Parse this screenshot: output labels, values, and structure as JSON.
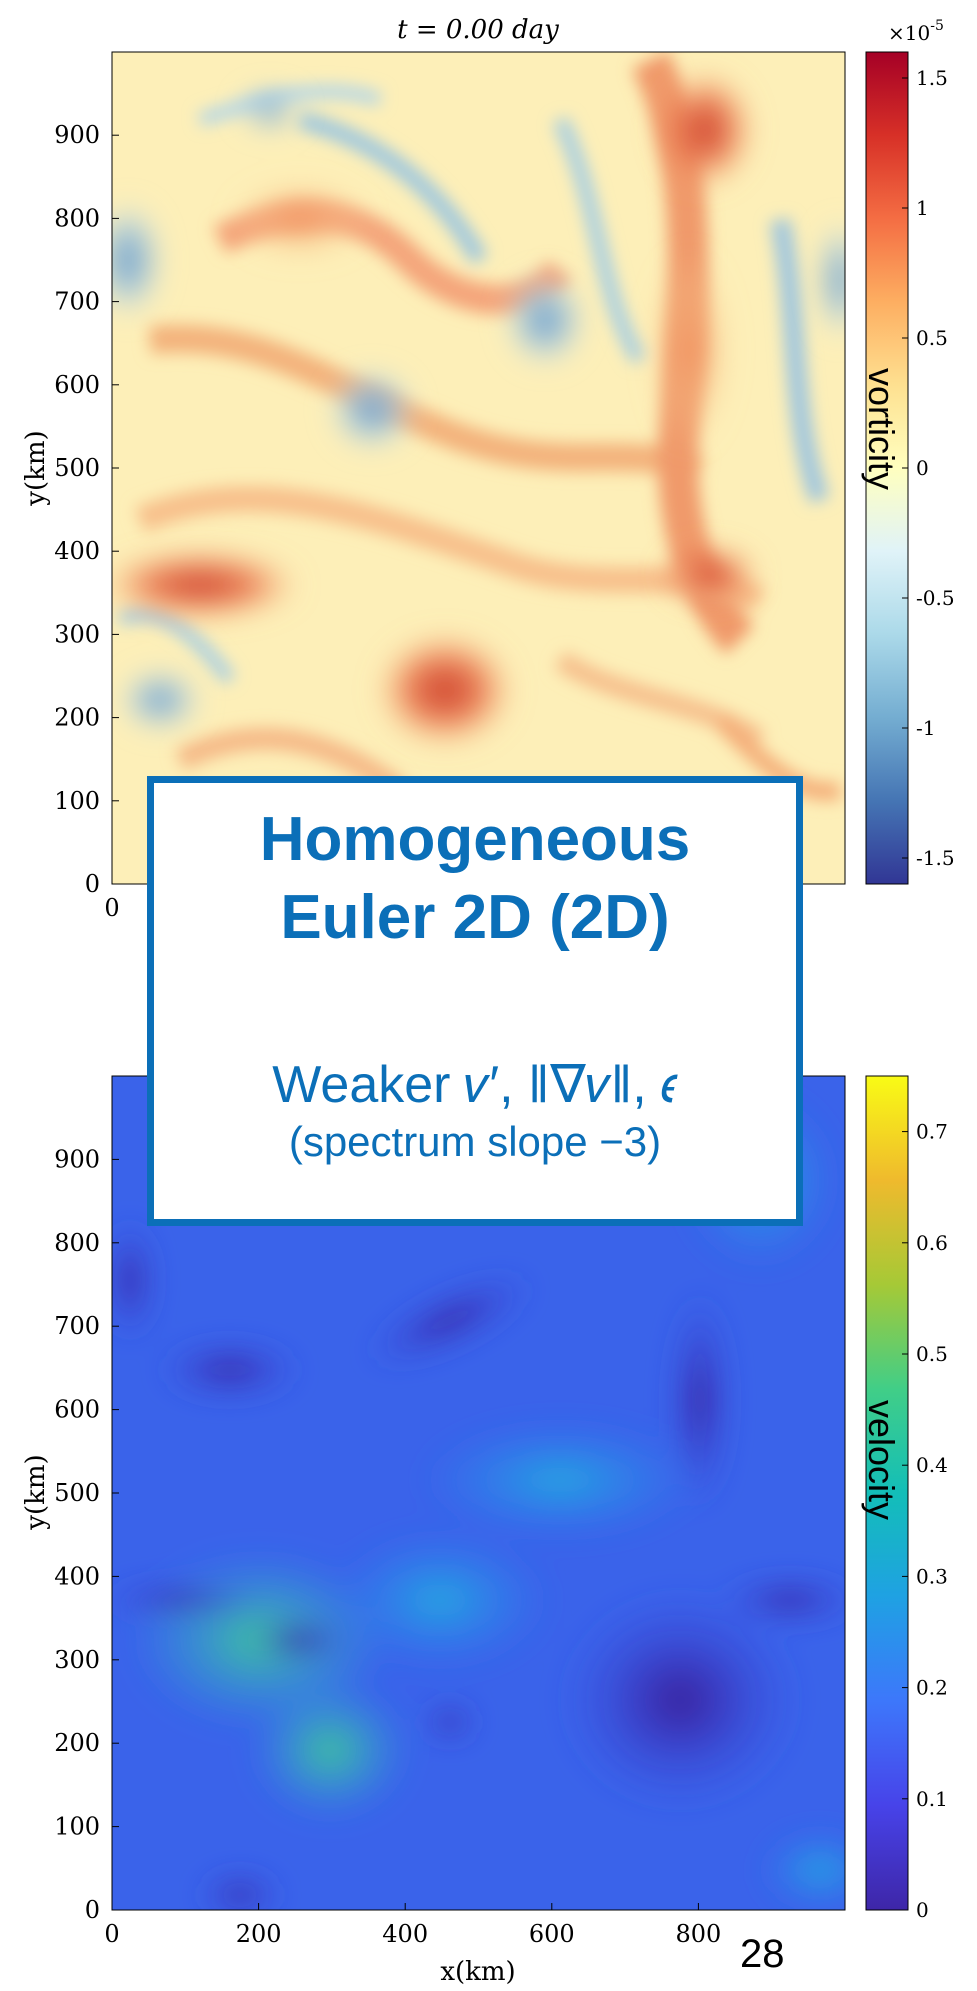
{
  "chart_data": [
    {
      "type": "heatmap",
      "title": "t = 0.00 day",
      "xlabel": "",
      "ylabel": "y(km)",
      "xlim": [
        0,
        1000
      ],
      "ylim": [
        0,
        1000
      ],
      "xticks": [
        "0"
      ],
      "yticks": [
        "0",
        "100",
        "200",
        "300",
        "400",
        "500",
        "600",
        "700",
        "800",
        "900"
      ],
      "colorbar": {
        "label": "vorticity",
        "exponent": "×10",
        "exponent_power": "-5",
        "range": [
          -1.6,
          1.6
        ],
        "ticks": [
          "1.5",
          "1",
          "0.5",
          "0",
          "-0.5",
          "-1",
          "-1.5"
        ],
        "colors": [
          "#313695",
          "#4575b4",
          "#74add1",
          "#abd9e9",
          "#e0f3f8",
          "#ffffbf",
          "#fee090",
          "#fdae61",
          "#f46d43",
          "#d73027",
          "#a50026"
        ]
      }
    },
    {
      "type": "heatmap",
      "title": "",
      "xlabel": "x(km)",
      "ylabel": "y(km)",
      "xlim": [
        0,
        1000
      ],
      "ylim": [
        0,
        1000
      ],
      "xticks": [
        "0",
        "200",
        "400",
        "600",
        "800"
      ],
      "yticks": [
        "0",
        "100",
        "200",
        "300",
        "400",
        "500",
        "600",
        "700",
        "800",
        "900"
      ],
      "colorbar": {
        "label": "velocity",
        "range": [
          0,
          0.75
        ],
        "ticks": [
          "0",
          "0.1",
          "0.2",
          "0.3",
          "0.4",
          "0.5",
          "0.6",
          "0.7"
        ],
        "colors": [
          "#3e26a8",
          "#4743e9",
          "#3d77fb",
          "#1fa1e3",
          "#13beb8",
          "#41ce87",
          "#a6c936",
          "#efba2d",
          "#f9fb15"
        ]
      }
    }
  ],
  "overlay": {
    "title_line1": "Homogeneous",
    "title_line2": "Euler 2D (2D)",
    "subtitle": "Weaker 𝑣′, ‖∇𝑣‖, 𝜖",
    "subtitle2": "(spectrum slope −3)"
  },
  "slide_number": "28"
}
